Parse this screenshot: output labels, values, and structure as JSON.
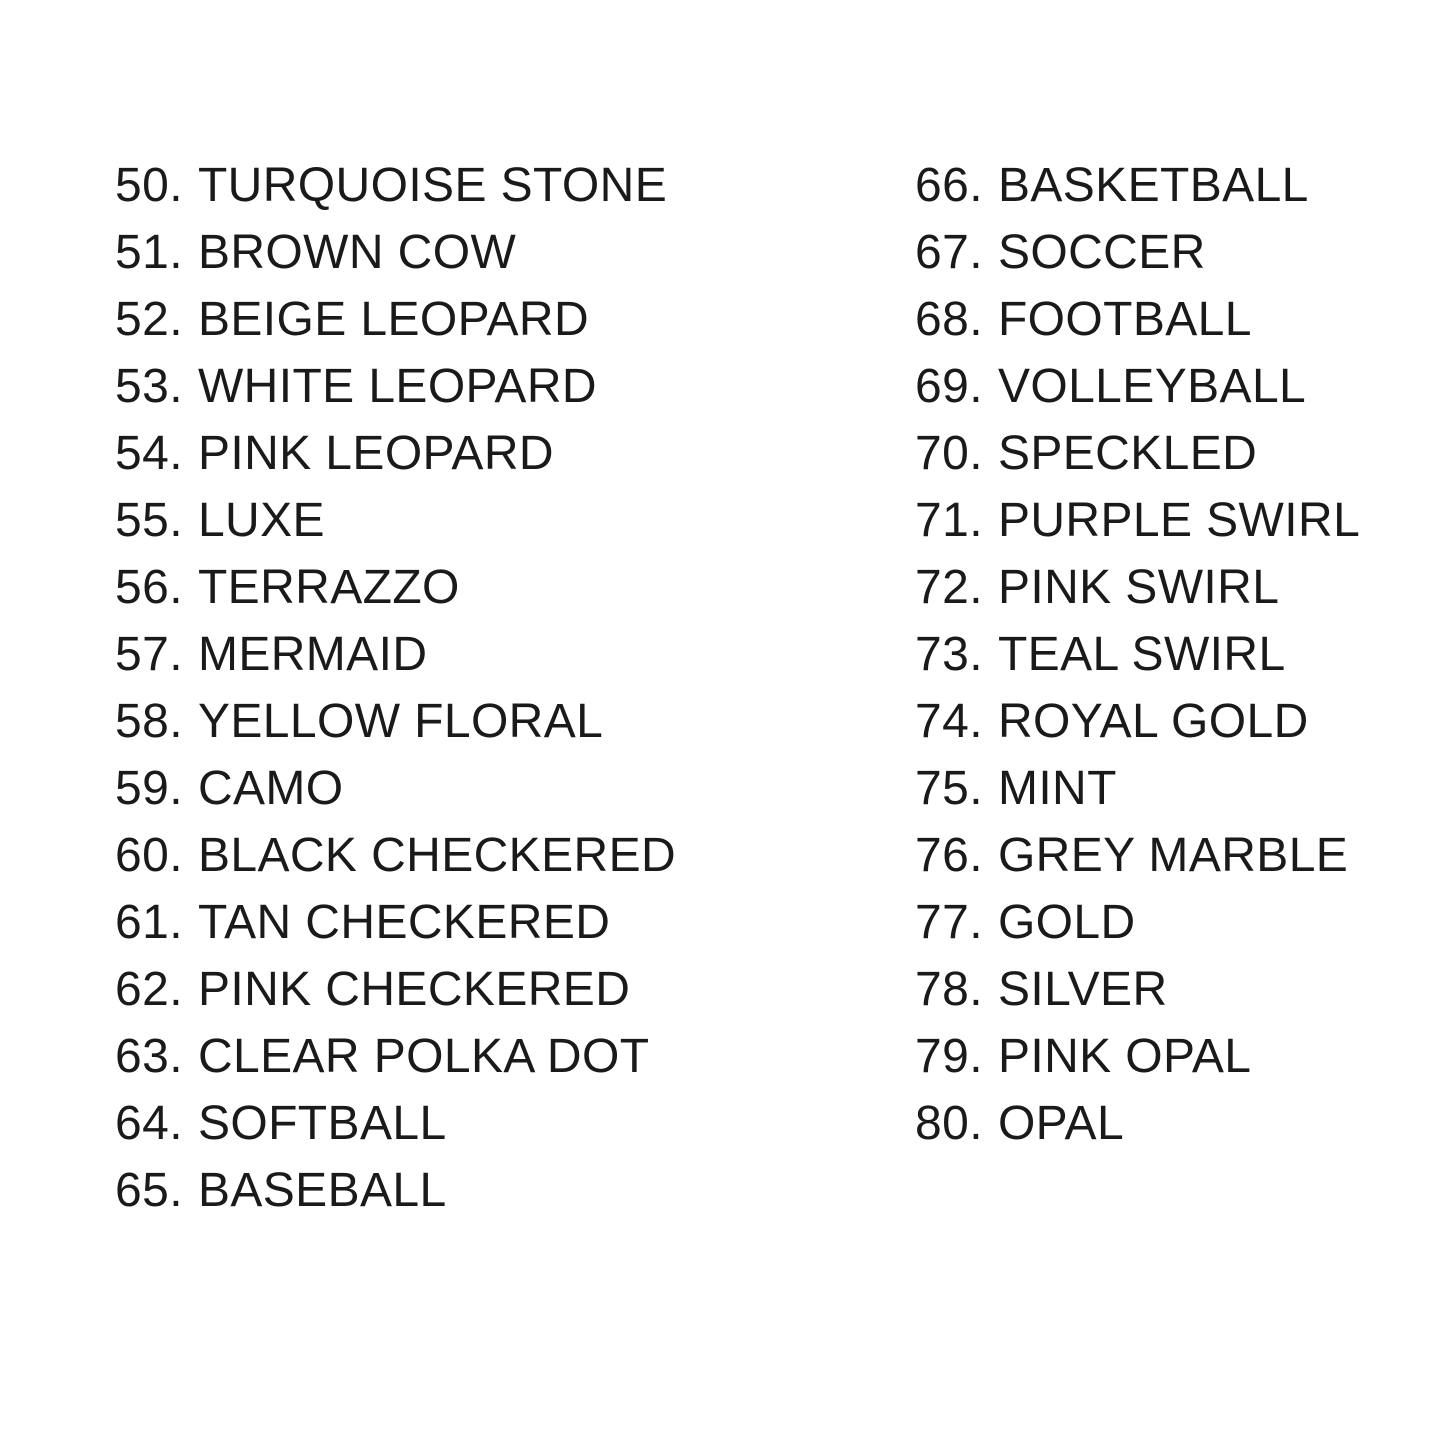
{
  "page": {
    "background_color": "#ffffff",
    "text_color": "#1a1a1a"
  },
  "list": {
    "columns": [
      {
        "side": "left",
        "items": [
          {
            "num": "50.",
            "label": "TURQUOISE STONE"
          },
          {
            "num": "51.",
            "label": "BROWN COW"
          },
          {
            "num": "52.",
            "label": "BEIGE LEOPARD"
          },
          {
            "num": "53.",
            "label": "WHITE LEOPARD"
          },
          {
            "num": "54.",
            "label": "PINK LEOPARD"
          },
          {
            "num": "55.",
            "label": "LUXE"
          },
          {
            "num": "56.",
            "label": "TERRAZZO"
          },
          {
            "num": "57.",
            "label": "MERMAID"
          },
          {
            "num": "58.",
            "label": "YELLOW FLORAL"
          },
          {
            "num": "59.",
            "label": "CAMO"
          },
          {
            "num": "60.",
            "label": "BLACK CHECKERED"
          },
          {
            "num": "61.",
            "label": "TAN CHECKERED"
          },
          {
            "num": "62.",
            "label": "PINK CHECKERED"
          },
          {
            "num": "63.",
            "label": "CLEAR POLKA DOT"
          },
          {
            "num": "64.",
            "label": "SOFTBALL"
          },
          {
            "num": "65.",
            "label": "BASEBALL"
          }
        ]
      },
      {
        "side": "right",
        "items": [
          {
            "num": "66.",
            "label": "BASKETBALL"
          },
          {
            "num": "67.",
            "label": "SOCCER"
          },
          {
            "num": "68.",
            "label": "FOOTBALL"
          },
          {
            "num": "69.",
            "label": "VOLLEYBALL"
          },
          {
            "num": "70.",
            "label": "SPECKLED"
          },
          {
            "num": "71.",
            "label": "PURPLE SWIRL"
          },
          {
            "num": "72.",
            "label": "PINK SWIRL"
          },
          {
            "num": "73.",
            "label": "TEAL SWIRL"
          },
          {
            "num": "74.",
            "label": "ROYAL GOLD"
          },
          {
            "num": "75.",
            "label": "MINT"
          },
          {
            "num": "76.",
            "label": "GREY MARBLE"
          },
          {
            "num": "77.",
            "label": "GOLD"
          },
          {
            "num": "78.",
            "label": "SILVER"
          },
          {
            "num": "79.",
            "label": "PINK OPAL"
          },
          {
            "num": "80.",
            "label": "OPAL"
          }
        ]
      }
    ]
  }
}
